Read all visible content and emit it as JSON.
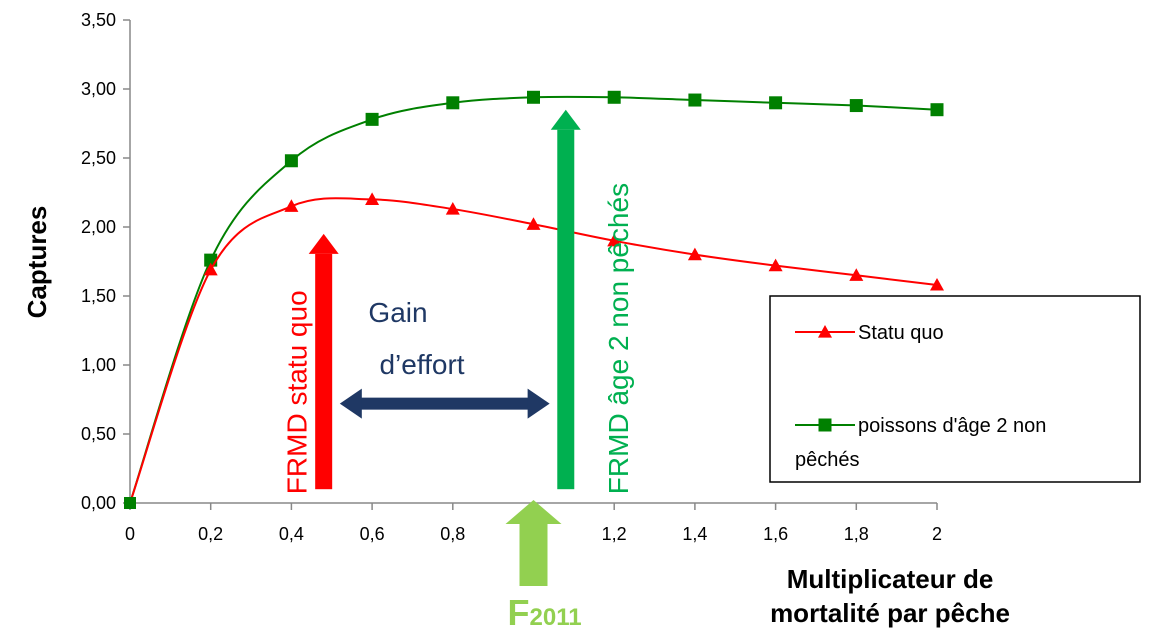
{
  "chart_data": {
    "type": "line",
    "ylabel": "Captures",
    "xlabel_lines": [
      "Multiplicateur de",
      "mortalité par pêche"
    ],
    "xlim": [
      0,
      2
    ],
    "ylim": [
      0,
      3.5
    ],
    "x_ticks": [
      "0",
      "0,2",
      "0,4",
      "0,6",
      "0,8",
      "1",
      "1,2",
      "1,4",
      "1,6",
      "1,8",
      "2"
    ],
    "y_ticks": [
      "0,00",
      "0,50",
      "1,00",
      "1,50",
      "2,00",
      "2,50",
      "3,00",
      "3,50"
    ],
    "x": [
      0,
      0.2,
      0.4,
      0.6,
      0.8,
      1.0,
      1.2,
      1.4,
      1.6,
      1.8,
      2.0
    ],
    "series": [
      {
        "name": "Statu quo",
        "color": "#ff0000",
        "marker": "triangle",
        "values": [
          0,
          1.69,
          2.15,
          2.2,
          2.13,
          2.02,
          1.9,
          1.8,
          1.72,
          1.65,
          1.58
        ]
      },
      {
        "name_lines": [
          "poissons d'âge 2 non",
          "pêchés"
        ],
        "color": "#008000",
        "marker": "square",
        "values": [
          0,
          1.76,
          2.48,
          2.78,
          2.9,
          2.94,
          2.94,
          2.92,
          2.9,
          2.88,
          2.85
        ]
      }
    ],
    "legend_position": "right",
    "annotations": {
      "frmd_statu_quo": {
        "text": "FRMD statu quo",
        "color": "#ff0000",
        "x": 0.48,
        "y_from": 0.1,
        "y_to": 1.95
      },
      "frmd_age2": {
        "text": "FRMD âge 2 non pêchés",
        "color": "#00b050",
        "x": 1.08,
        "y_from": 0.1,
        "y_to": 2.85
      },
      "gain_effort": {
        "lines": [
          "Gain",
          "d’effort"
        ],
        "color": "#1f3864",
        "x_from": 0.52,
        "x_to": 1.04,
        "y": 0.72
      },
      "f2011": {
        "text_main": "F",
        "text_sub": "2011",
        "color": "#92d050",
        "x": 1.0
      }
    }
  }
}
